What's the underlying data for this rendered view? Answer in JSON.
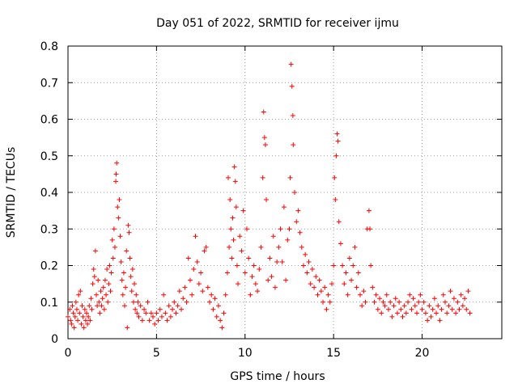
{
  "chart_data": {
    "type": "scatter",
    "title": "Day 051 of 2022, SRMTID for receiver ijmu",
    "xlabel": "GPS time / hours",
    "ylabel": "SRMTID / TECUs",
    "xlim": [
      0,
      24.5
    ],
    "ylim": [
      0,
      0.8
    ],
    "xticks": [
      0,
      5,
      10,
      15,
      20
    ],
    "yticks": [
      0,
      0.1,
      0.2,
      0.3,
      0.4,
      0.5,
      0.6,
      0.7,
      0.8
    ],
    "grid": true,
    "marker": "+",
    "color": "#ff0000",
    "series": [
      {
        "name": "SRMTID",
        "points": [
          [
            0.0,
            0.06
          ],
          [
            0.1,
            0.08
          ],
          [
            0.15,
            0.05
          ],
          [
            0.2,
            0.04
          ],
          [
            0.25,
            0.09
          ],
          [
            0.3,
            0.07
          ],
          [
            0.35,
            0.03
          ],
          [
            0.4,
            0.06
          ],
          [
            0.45,
            0.1
          ],
          [
            0.5,
            0.08
          ],
          [
            0.55,
            0.05
          ],
          [
            0.6,
            0.12
          ],
          [
            0.65,
            0.07
          ],
          [
            0.7,
            0.13
          ],
          [
            0.75,
            0.04
          ],
          [
            0.8,
            0.09
          ],
          [
            0.85,
            0.06
          ],
          [
            0.9,
            0.03
          ],
          [
            0.95,
            0.08
          ],
          [
            1.0,
            0.05
          ],
          [
            1.05,
            0.07
          ],
          [
            1.1,
            0.04
          ],
          [
            1.15,
            0.06
          ],
          [
            1.2,
            0.09
          ],
          [
            1.25,
            0.05
          ],
          [
            1.3,
            0.11
          ],
          [
            1.35,
            0.08
          ],
          [
            1.4,
            0.15
          ],
          [
            1.45,
            0.19
          ],
          [
            1.5,
            0.17
          ],
          [
            1.55,
            0.24
          ],
          [
            1.6,
            0.12
          ],
          [
            1.65,
            0.09
          ],
          [
            1.7,
            0.16
          ],
          [
            1.75,
            0.1
          ],
          [
            1.8,
            0.07
          ],
          [
            1.85,
            0.13
          ],
          [
            1.9,
            0.09
          ],
          [
            1.95,
            0.11
          ],
          [
            2.0,
            0.14
          ],
          [
            2.05,
            0.08
          ],
          [
            2.1,
            0.16
          ],
          [
            2.15,
            0.12
          ],
          [
            2.2,
            0.19
          ],
          [
            2.25,
            0.1
          ],
          [
            2.3,
            0.15
          ],
          [
            2.35,
            0.2
          ],
          [
            2.4,
            0.13
          ],
          [
            2.45,
            0.18
          ],
          [
            2.5,
            0.27
          ],
          [
            2.55,
            0.22
          ],
          [
            2.6,
            0.3
          ],
          [
            2.65,
            0.25
          ],
          [
            2.7,
            0.43
          ],
          [
            2.72,
            0.45
          ],
          [
            2.75,
            0.48
          ],
          [
            2.8,
            0.36
          ],
          [
            2.85,
            0.33
          ],
          [
            2.9,
            0.38
          ],
          [
            2.95,
            0.28
          ],
          [
            3.0,
            0.21
          ],
          [
            3.05,
            0.16
          ],
          [
            3.1,
            0.12
          ],
          [
            3.15,
            0.18
          ],
          [
            3.2,
            0.09
          ],
          [
            3.25,
            0.14
          ],
          [
            3.3,
            0.24
          ],
          [
            3.35,
            0.03
          ],
          [
            3.4,
            0.31
          ],
          [
            3.45,
            0.29
          ],
          [
            3.5,
            0.22
          ],
          [
            3.55,
            0.17
          ],
          [
            3.6,
            0.13
          ],
          [
            3.65,
            0.19
          ],
          [
            3.7,
            0.1
          ],
          [
            3.75,
            0.15
          ],
          [
            3.8,
            0.08
          ],
          [
            3.85,
            0.12
          ],
          [
            3.9,
            0.07
          ],
          [
            3.95,
            0.1
          ],
          [
            4.0,
            0.06
          ],
          [
            4.1,
            0.09
          ],
          [
            4.2,
            0.05
          ],
          [
            4.3,
            0.08
          ],
          [
            4.4,
            0.07
          ],
          [
            4.5,
            0.1
          ],
          [
            4.6,
            0.05
          ],
          [
            4.7,
            0.07
          ],
          [
            4.8,
            0.06
          ],
          [
            4.9,
            0.04
          ],
          [
            5.0,
            0.07
          ],
          [
            5.1,
            0.05
          ],
          [
            5.2,
            0.08
          ],
          [
            5.3,
            0.06
          ],
          [
            5.4,
            0.12
          ],
          [
            5.5,
            0.07
          ],
          [
            5.6,
            0.05
          ],
          [
            5.7,
            0.09
          ],
          [
            5.8,
            0.06
          ],
          [
            5.9,
            0.08
          ],
          [
            6.0,
            0.1
          ],
          [
            6.1,
            0.07
          ],
          [
            6.2,
            0.09
          ],
          [
            6.3,
            0.13
          ],
          [
            6.4,
            0.08
          ],
          [
            6.5,
            0.11
          ],
          [
            6.6,
            0.14
          ],
          [
            6.7,
            0.1
          ],
          [
            6.8,
            0.22
          ],
          [
            6.9,
            0.16
          ],
          [
            7.0,
            0.12
          ],
          [
            7.1,
            0.19
          ],
          [
            7.2,
            0.28
          ],
          [
            7.3,
            0.21
          ],
          [
            7.4,
            0.15
          ],
          [
            7.5,
            0.18
          ],
          [
            7.6,
            0.13
          ],
          [
            7.7,
            0.24
          ],
          [
            7.8,
            0.25
          ],
          [
            7.9,
            0.14
          ],
          [
            8.0,
            0.1
          ],
          [
            8.1,
            0.12
          ],
          [
            8.2,
            0.08
          ],
          [
            8.3,
            0.11
          ],
          [
            8.4,
            0.06
          ],
          [
            8.5,
            0.09
          ],
          [
            8.6,
            0.05
          ],
          [
            8.7,
            0.03
          ],
          [
            8.8,
            0.07
          ],
          [
            8.9,
            0.12
          ],
          [
            9.0,
            0.18
          ],
          [
            9.05,
            0.44
          ],
          [
            9.1,
            0.25
          ],
          [
            9.15,
            0.38
          ],
          [
            9.2,
            0.3
          ],
          [
            9.25,
            0.22
          ],
          [
            9.3,
            0.33
          ],
          [
            9.35,
            0.27
          ],
          [
            9.4,
            0.47
          ],
          [
            9.45,
            0.43
          ],
          [
            9.5,
            0.36
          ],
          [
            9.55,
            0.2
          ],
          [
            9.6,
            0.15
          ],
          [
            9.7,
            0.28
          ],
          [
            9.8,
            0.24
          ],
          [
            9.9,
            0.35
          ],
          [
            10.0,
            0.18
          ],
          [
            10.1,
            0.3
          ],
          [
            10.2,
            0.22
          ],
          [
            10.3,
            0.12
          ],
          [
            10.4,
            0.17
          ],
          [
            10.5,
            0.2
          ],
          [
            10.6,
            0.15
          ],
          [
            10.7,
            0.13
          ],
          [
            10.8,
            0.19
          ],
          [
            10.9,
            0.25
          ],
          [
            11.0,
            0.44
          ],
          [
            11.05,
            0.62
          ],
          [
            11.1,
            0.55
          ],
          [
            11.15,
            0.53
          ],
          [
            11.2,
            0.38
          ],
          [
            11.3,
            0.16
          ],
          [
            11.4,
            0.22
          ],
          [
            11.5,
            0.17
          ],
          [
            11.6,
            0.28
          ],
          [
            11.7,
            0.14
          ],
          [
            11.8,
            0.21
          ],
          [
            11.9,
            0.25
          ],
          [
            12.0,
            0.3
          ],
          [
            12.1,
            0.21
          ],
          [
            12.2,
            0.36
          ],
          [
            12.3,
            0.16
          ],
          [
            12.4,
            0.27
          ],
          [
            12.5,
            0.3
          ],
          [
            12.55,
            0.44
          ],
          [
            12.6,
            0.75
          ],
          [
            12.65,
            0.69
          ],
          [
            12.7,
            0.61
          ],
          [
            12.72,
            0.53
          ],
          [
            12.8,
            0.4
          ],
          [
            12.9,
            0.32
          ],
          [
            13.0,
            0.35
          ],
          [
            13.1,
            0.29
          ],
          [
            13.2,
            0.25
          ],
          [
            13.3,
            0.2
          ],
          [
            13.4,
            0.23
          ],
          [
            13.5,
            0.18
          ],
          [
            13.6,
            0.21
          ],
          [
            13.7,
            0.15
          ],
          [
            13.8,
            0.19
          ],
          [
            13.9,
            0.14
          ],
          [
            14.0,
            0.17
          ],
          [
            14.1,
            0.12
          ],
          [
            14.2,
            0.16
          ],
          [
            14.3,
            0.13
          ],
          [
            14.4,
            0.1
          ],
          [
            14.5,
            0.14
          ],
          [
            14.6,
            0.08
          ],
          [
            14.7,
            0.12
          ],
          [
            14.8,
            0.1
          ],
          [
            14.9,
            0.15
          ],
          [
            15.0,
            0.2
          ],
          [
            15.05,
            0.44
          ],
          [
            15.1,
            0.38
          ],
          [
            15.15,
            0.5
          ],
          [
            15.2,
            0.56
          ],
          [
            15.25,
            0.54
          ],
          [
            15.3,
            0.32
          ],
          [
            15.4,
            0.26
          ],
          [
            15.5,
            0.2
          ],
          [
            15.6,
            0.15
          ],
          [
            15.7,
            0.18
          ],
          [
            15.8,
            0.12
          ],
          [
            15.9,
            0.22
          ],
          [
            16.0,
            0.16
          ],
          [
            16.1,
            0.2
          ],
          [
            16.2,
            0.25
          ],
          [
            16.3,
            0.14
          ],
          [
            16.4,
            0.18
          ],
          [
            16.5,
            0.12
          ],
          [
            16.6,
            0.09
          ],
          [
            16.7,
            0.13
          ],
          [
            16.8,
            0.1
          ],
          [
            16.9,
            0.3
          ],
          [
            17.0,
            0.35
          ],
          [
            17.05,
            0.3
          ],
          [
            17.1,
            0.2
          ],
          [
            17.2,
            0.14
          ],
          [
            17.3,
            0.1
          ],
          [
            17.4,
            0.12
          ],
          [
            17.5,
            0.08
          ],
          [
            17.6,
            0.11
          ],
          [
            17.7,
            0.07
          ],
          [
            17.8,
            0.1
          ],
          [
            17.9,
            0.09
          ],
          [
            18.0,
            0.12
          ],
          [
            18.1,
            0.08
          ],
          [
            18.2,
            0.1
          ],
          [
            18.3,
            0.06
          ],
          [
            18.4,
            0.09
          ],
          [
            18.5,
            0.11
          ],
          [
            18.6,
            0.07
          ],
          [
            18.7,
            0.1
          ],
          [
            18.8,
            0.08
          ],
          [
            18.9,
            0.06
          ],
          [
            19.0,
            0.09
          ],
          [
            19.1,
            0.07
          ],
          [
            19.2,
            0.1
          ],
          [
            19.3,
            0.12
          ],
          [
            19.4,
            0.08
          ],
          [
            19.5,
            0.11
          ],
          [
            19.6,
            0.09
          ],
          [
            19.7,
            0.07
          ],
          [
            19.8,
            0.1
          ],
          [
            19.9,
            0.12
          ],
          [
            20.0,
            0.08
          ],
          [
            20.1,
            0.1
          ],
          [
            20.2,
            0.07
          ],
          [
            20.3,
            0.05
          ],
          [
            20.4,
            0.09
          ],
          [
            20.5,
            0.06
          ],
          [
            20.6,
            0.08
          ],
          [
            20.7,
            0.11
          ],
          [
            20.8,
            0.07
          ],
          [
            20.9,
            0.09
          ],
          [
            21.0,
            0.05
          ],
          [
            21.1,
            0.08
          ],
          [
            21.2,
            0.12
          ],
          [
            21.3,
            0.1
          ],
          [
            21.4,
            0.07
          ],
          [
            21.5,
            0.09
          ],
          [
            21.6,
            0.13
          ],
          [
            21.7,
            0.08
          ],
          [
            21.8,
            0.11
          ],
          [
            21.9,
            0.07
          ],
          [
            22.0,
            0.1
          ],
          [
            22.1,
            0.08
          ],
          [
            22.2,
            0.12
          ],
          [
            22.3,
            0.09
          ],
          [
            22.4,
            0.11
          ],
          [
            22.5,
            0.08
          ],
          [
            22.6,
            0.13
          ],
          [
            22.7,
            0.07
          ]
        ]
      }
    ]
  }
}
